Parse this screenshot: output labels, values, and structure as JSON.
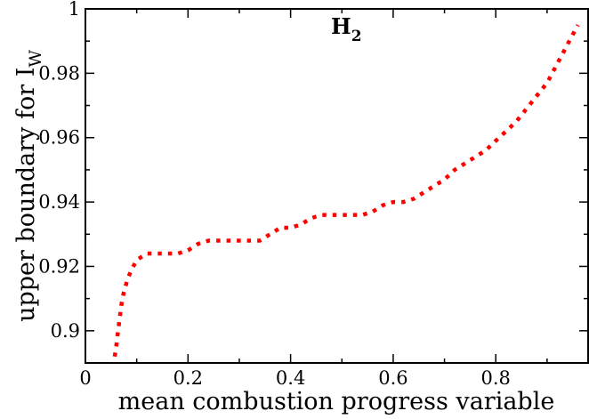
{
  "chart_data": {
    "type": "line",
    "title": "",
    "annotation": {
      "text": "H",
      "subscript": "2"
    },
    "xlabel": "mean combustion progress variable",
    "ylabel": {
      "text": "upper boundary for I",
      "subscript": "W"
    },
    "xlim": [
      0,
      0.98
    ],
    "ylim": [
      0.89,
      1.0
    ],
    "xticks": [
      0,
      0.2,
      0.4,
      0.6,
      0.8
    ],
    "xtick_labels": [
      "0",
      "0.2",
      "0.4",
      "0.6",
      "0.8"
    ],
    "yticks": [
      0.9,
      0.92,
      0.94,
      0.96,
      0.98,
      1.0
    ],
    "ytick_labels": [
      "0.9",
      "0.92",
      "0.94",
      "0.96",
      "0.98",
      "1"
    ],
    "grid": false,
    "series": [
      {
        "color": "#ff0000",
        "style": "dotted",
        "x": [
          0.057,
          0.06,
          0.063,
          0.066,
          0.07,
          0.075,
          0.082,
          0.09,
          0.1,
          0.12,
          0.14,
          0.16,
          0.18,
          0.2,
          0.22,
          0.24,
          0.26,
          0.28,
          0.3,
          0.32,
          0.34,
          0.36,
          0.38,
          0.4,
          0.42,
          0.44,
          0.46,
          0.48,
          0.5,
          0.52,
          0.54,
          0.56,
          0.58,
          0.6,
          0.62,
          0.64,
          0.66,
          0.68,
          0.7,
          0.72,
          0.74,
          0.76,
          0.78,
          0.8,
          0.82,
          0.84,
          0.86,
          0.88,
          0.9,
          0.91,
          0.92,
          0.93,
          0.94,
          0.95,
          0.96
        ],
        "y": [
          0.892,
          0.895,
          0.899,
          0.903,
          0.908,
          0.912,
          0.916,
          0.919,
          0.922,
          0.924,
          0.924,
          0.924,
          0.924,
          0.925,
          0.927,
          0.928,
          0.928,
          0.928,
          0.928,
          0.928,
          0.928,
          0.93,
          0.932,
          0.932,
          0.933,
          0.935,
          0.936,
          0.936,
          0.936,
          0.936,
          0.936,
          0.937,
          0.939,
          0.94,
          0.94,
          0.941,
          0.943,
          0.945,
          0.947,
          0.95,
          0.952,
          0.954,
          0.956,
          0.959,
          0.962,
          0.965,
          0.969,
          0.973,
          0.977,
          0.98,
          0.983,
          0.986,
          0.989,
          0.992,
          0.995
        ]
      }
    ]
  }
}
